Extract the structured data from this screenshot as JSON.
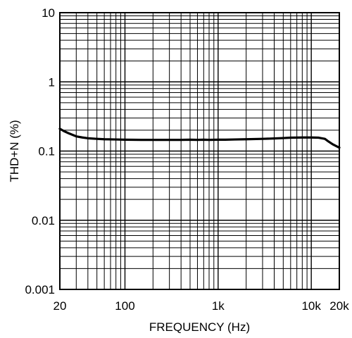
{
  "chart_data": {
    "type": "line",
    "title": "",
    "xlabel": "FREQUENCY (Hz)",
    "ylabel": "THD+N (%)",
    "xscale": "log",
    "yscale": "log",
    "xlim": [
      20,
      20000
    ],
    "ylim": [
      0.001,
      10
    ],
    "grid": true,
    "legend": "none",
    "x_ticks": [
      {
        "value": 20,
        "label": "20"
      },
      {
        "value": 100,
        "label": "100"
      },
      {
        "value": 1000,
        "label": "1k"
      },
      {
        "value": 10000,
        "label": "10k"
      },
      {
        "value": 20000,
        "label": "20k"
      }
    ],
    "y_ticks": [
      {
        "value": 10,
        "label": "10"
      },
      {
        "value": 1,
        "label": "1"
      },
      {
        "value": 0.1,
        "label": "0.1"
      },
      {
        "value": 0.01,
        "label": "0.01"
      },
      {
        "value": 0.001,
        "label": "0.001"
      }
    ],
    "line_color": "#000000",
    "series": [
      {
        "x": [
          20,
          22,
          25,
          30,
          35,
          40,
          50,
          60,
          80,
          100,
          150,
          200,
          300,
          400,
          500,
          600,
          700,
          800,
          1000,
          1200,
          1500,
          2000,
          3000,
          4000,
          5000,
          6000,
          8000,
          10000,
          12000,
          14000,
          15000,
          17000,
          20000
        ],
        "y": [
          0.21,
          0.195,
          0.18,
          0.163,
          0.157,
          0.153,
          0.15,
          0.148,
          0.147,
          0.146,
          0.145,
          0.145,
          0.145,
          0.145,
          0.146,
          0.145,
          0.146,
          0.145,
          0.146,
          0.146,
          0.147,
          0.148,
          0.15,
          0.152,
          0.154,
          0.156,
          0.157,
          0.157,
          0.156,
          0.15,
          0.14,
          0.125,
          0.112
        ]
      }
    ]
  }
}
